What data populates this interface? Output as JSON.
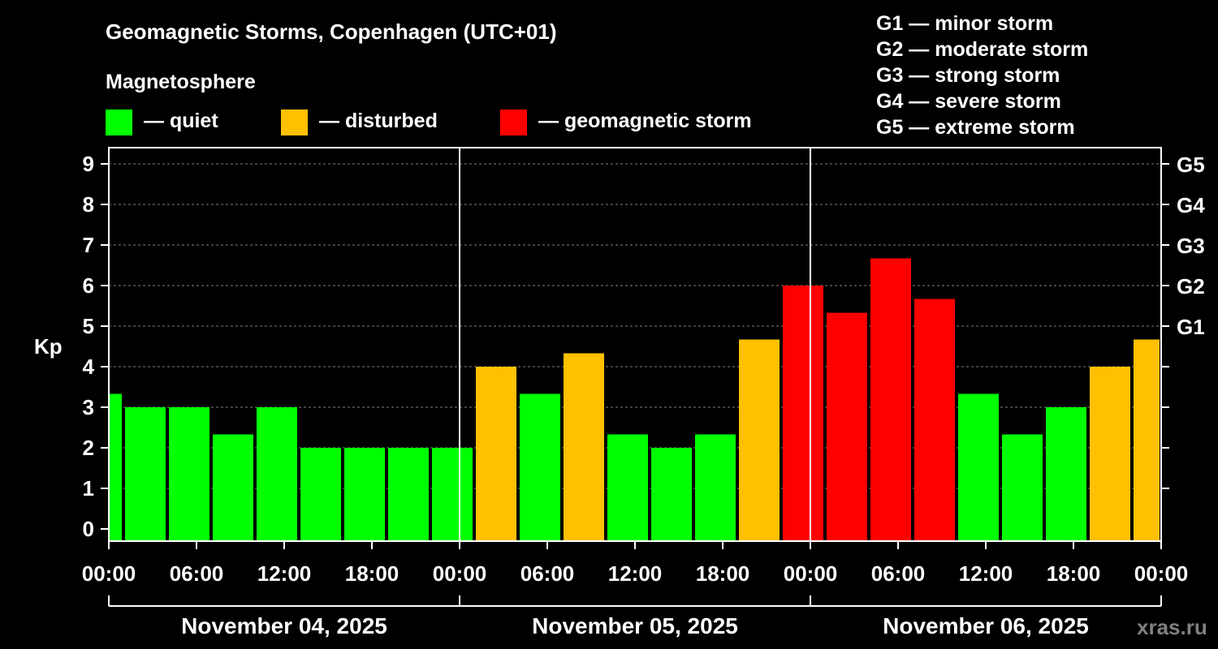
{
  "chart_data": {
    "type": "bar",
    "title": "Geomagnetic Storms, Copenhagen (UTC+01)",
    "ylabel": "Kp",
    "ylim": [
      0,
      9
    ],
    "y_ticks": [
      "0",
      "1",
      "2",
      "3",
      "4",
      "5",
      "6",
      "7",
      "8",
      "9"
    ],
    "g_levels": [
      {
        "label": "G1",
        "kp": 5
      },
      {
        "label": "G2",
        "kp": 6
      },
      {
        "label": "G3",
        "kp": 7
      },
      {
        "label": "G4",
        "kp": 8
      },
      {
        "label": "G5",
        "kp": 9
      }
    ],
    "magnetosphere": {
      "heading": "Magnetosphere",
      "items": [
        {
          "label": "— quiet",
          "color": "#00ff00"
        },
        {
          "label": "— disturbed",
          "color": "#ffc000"
        },
        {
          "label": "— geomagnetic storm",
          "color": "#ff0000"
        }
      ]
    },
    "scale_legend": [
      "G1 — minor storm",
      "G2 — moderate storm",
      "G3 — strong storm",
      "G4 — severe storm",
      "G5 — extreme storm"
    ],
    "x_ticks": [
      "00:00",
      "06:00",
      "12:00",
      "18:00",
      "00:00",
      "06:00",
      "12:00",
      "18:00",
      "00:00",
      "06:00",
      "12:00",
      "18:00",
      "00:00"
    ],
    "dates": [
      "November 04, 2025",
      "November 05, 2025",
      "November 06, 2025"
    ],
    "x_range_hours": [
      0,
      72
    ],
    "bars": [
      {
        "start": 0,
        "end": 1,
        "kp": 3.33,
        "level": "quiet"
      },
      {
        "start": 1,
        "end": 4,
        "kp": 3.0,
        "level": "quiet"
      },
      {
        "start": 4,
        "end": 7,
        "kp": 3.0,
        "level": "quiet"
      },
      {
        "start": 7,
        "end": 10,
        "kp": 2.33,
        "level": "quiet"
      },
      {
        "start": 10,
        "end": 13,
        "kp": 3.0,
        "level": "quiet"
      },
      {
        "start": 13,
        "end": 16,
        "kp": 2.0,
        "level": "quiet"
      },
      {
        "start": 16,
        "end": 19,
        "kp": 2.0,
        "level": "quiet"
      },
      {
        "start": 19,
        "end": 22,
        "kp": 2.0,
        "level": "quiet"
      },
      {
        "start": 22,
        "end": 25,
        "kp": 2.0,
        "level": "quiet"
      },
      {
        "start": 25,
        "end": 28,
        "kp": 4.0,
        "level": "disturbed"
      },
      {
        "start": 28,
        "end": 31,
        "kp": 3.33,
        "level": "quiet"
      },
      {
        "start": 31,
        "end": 34,
        "kp": 4.33,
        "level": "disturbed"
      },
      {
        "start": 34,
        "end": 37,
        "kp": 2.33,
        "level": "quiet"
      },
      {
        "start": 37,
        "end": 40,
        "kp": 2.0,
        "level": "quiet"
      },
      {
        "start": 40,
        "end": 43,
        "kp": 2.33,
        "level": "quiet"
      },
      {
        "start": 43,
        "end": 46,
        "kp": 4.67,
        "level": "disturbed"
      },
      {
        "start": 46,
        "end": 49,
        "kp": 6.0,
        "level": "storm"
      },
      {
        "start": 49,
        "end": 52,
        "kp": 5.33,
        "level": "storm"
      },
      {
        "start": 52,
        "end": 55,
        "kp": 6.67,
        "level": "storm"
      },
      {
        "start": 55,
        "end": 58,
        "kp": 5.67,
        "level": "storm"
      },
      {
        "start": 58,
        "end": 61,
        "kp": 3.33,
        "level": "quiet"
      },
      {
        "start": 61,
        "end": 64,
        "kp": 2.33,
        "level": "quiet"
      },
      {
        "start": 64,
        "end": 67,
        "kp": 3.0,
        "level": "quiet"
      },
      {
        "start": 67,
        "end": 70,
        "kp": 4.0,
        "level": "disturbed"
      },
      {
        "start": 70,
        "end": 72,
        "kp": 4.67,
        "level": "disturbed"
      }
    ],
    "colors": {
      "quiet": "#00ff00",
      "disturbed": "#ffc000",
      "storm": "#ff0000"
    }
  },
  "watermark": "xras.ru"
}
